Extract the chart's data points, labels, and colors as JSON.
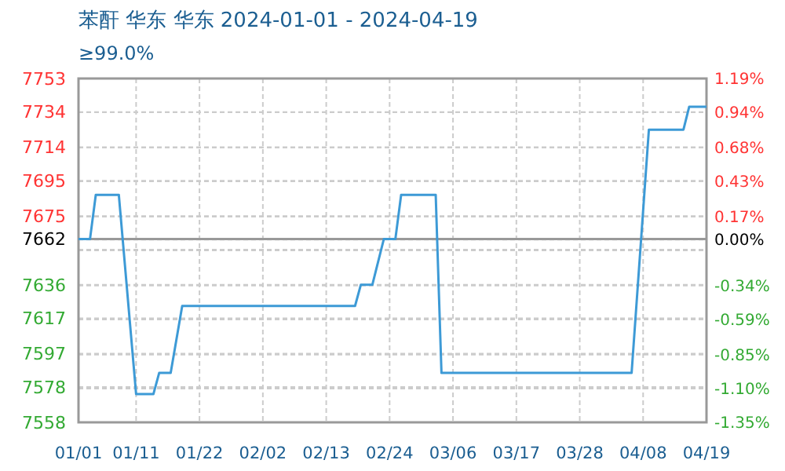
{
  "chart_data": {
    "type": "line",
    "title": "苯酐 华东 华东 2024-01-01 - 2024-04-19",
    "subtitle": "≥99.0%",
    "x": [
      "2024-01-01",
      "2024-01-03",
      "2024-01-04",
      "2024-01-08",
      "2024-01-11",
      "2024-01-14",
      "2024-01-15",
      "2024-01-17",
      "2024-01-19",
      "2024-02-18",
      "2024-02-19",
      "2024-02-21",
      "2024-02-23",
      "2024-02-25",
      "2024-02-26",
      "2024-03-03",
      "2024-03-04",
      "2024-04-06",
      "2024-04-09",
      "2024-04-15",
      "2024-04-16",
      "2024-04-19"
    ],
    "series": [
      {
        "color": "#3d9ad6",
        "values": [
          7662,
          7662,
          7687,
          7687,
          7574,
          7574,
          7586,
          7586,
          7624,
          7624,
          7636,
          7636,
          7662,
          7662,
          7687,
          7687,
          7586,
          7586,
          7724,
          7724,
          7737,
          7737
        ]
      }
    ],
    "xlim": [
      "2024-01-01",
      "2024-04-19"
    ],
    "xticks": [
      {
        "value": "2024-01-01",
        "label": "01/01"
      },
      {
        "value": "2024-01-11",
        "label": "01/11"
      },
      {
        "value": "2024-01-22",
        "label": "01/22"
      },
      {
        "value": "2024-02-02",
        "label": "02/02"
      },
      {
        "value": "2024-02-13",
        "label": "02/13"
      },
      {
        "value": "2024-02-24",
        "label": "02/24"
      },
      {
        "value": "2024-03-06",
        "label": "03/06"
      },
      {
        "value": "2024-03-17",
        "label": "03/17"
      },
      {
        "value": "2024-03-28",
        "label": "03/28"
      },
      {
        "value": "2024-04-08",
        "label": "04/08"
      },
      {
        "value": "2024-04-19",
        "label": "04/19"
      }
    ],
    "ylim": [
      7558,
      7753
    ],
    "yticks": [
      7558,
      7578,
      7597,
      7617,
      7636,
      {
        "value": 7656,
        "label": null
      },
      7662,
      7675,
      7695,
      7714,
      7734,
      7753
    ],
    "y2lim": [
      -1.35,
      1.19
    ],
    "y2ticks": [
      {
        "value": -1.35,
        "label": "-1.35%"
      },
      {
        "value": -1.1,
        "label": "-1.10%"
      },
      {
        "value": -0.85,
        "label": "-0.85%"
      },
      {
        "value": -0.59,
        "label": "-0.59%"
      },
      {
        "value": -0.34,
        "label": "-0.34%"
      },
      {
        "value": -0.08,
        "label": null
      },
      {
        "value": 0,
        "label": "0.00%"
      },
      {
        "value": 0.17,
        "label": "0.17%"
      },
      {
        "value": 0.43,
        "label": "0.43%"
      },
      {
        "value": 0.68,
        "label": "0.68%"
      },
      {
        "value": 0.94,
        "label": "0.94%"
      },
      {
        "value": 1.19,
        "label": "1.19%"
      }
    ],
    "ref_lines": [
      {
        "axis": "y",
        "value": 7662,
        "color": "#999999"
      }
    ],
    "grid": true,
    "line_style": "solid",
    "marker": "none"
  }
}
